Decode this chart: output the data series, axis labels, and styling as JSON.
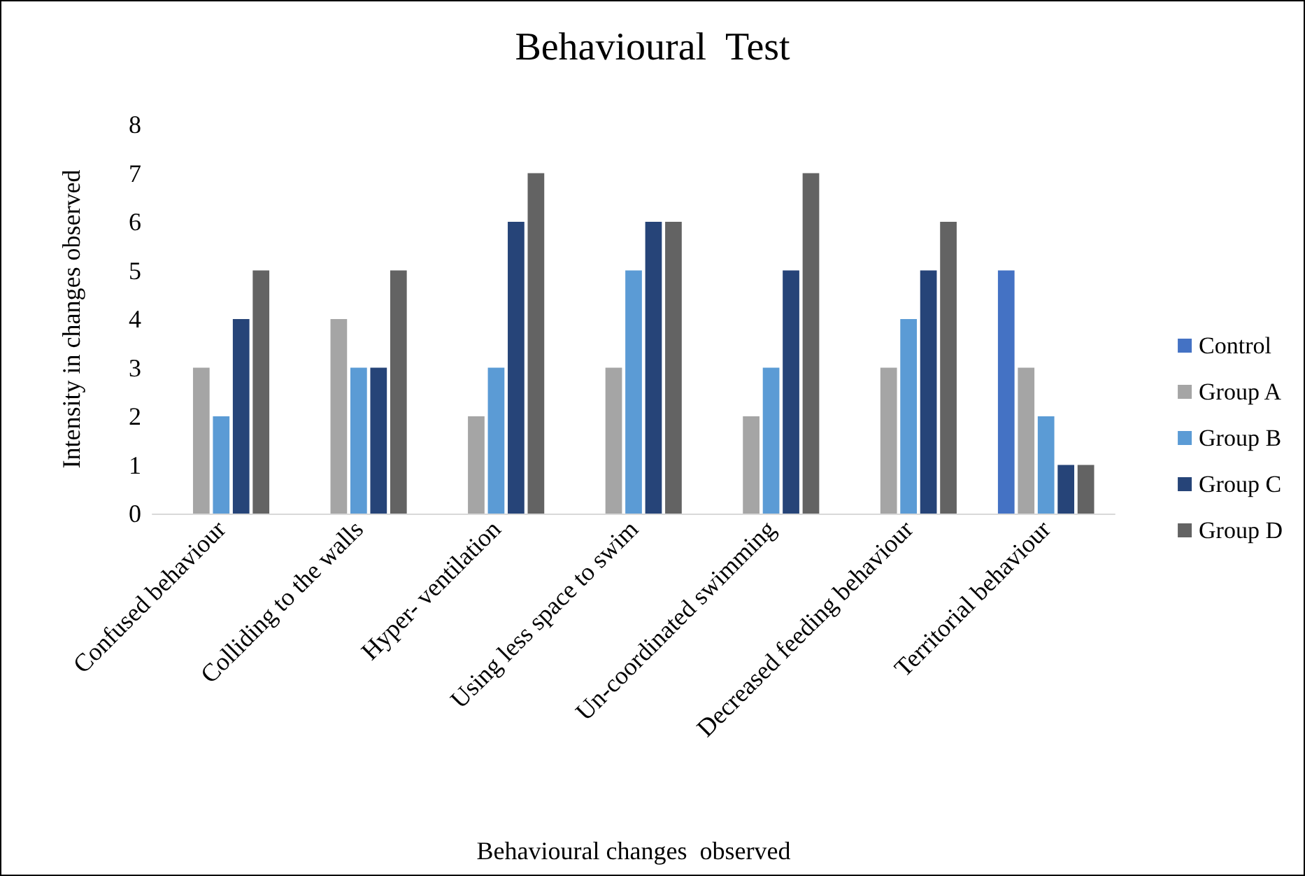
{
  "chart_data": {
    "type": "bar",
    "title": "Behavioural  Test",
    "xlabel": "Behavioural changes  observed",
    "ylabel": "Intensity in changes observed",
    "categories": [
      "Confused behaviour",
      "Colliding to the walls",
      "Hyper- ventilation",
      "Using less space to swim",
      "Un-coordinated swimming",
      "Decreased feeding behaviour",
      "Territorial behaviour"
    ],
    "series": [
      {
        "name": "Control",
        "color": "#4472c4",
        "values": [
          0,
          0,
          0,
          0,
          0,
          0,
          5
        ]
      },
      {
        "name": "Group A",
        "color": "#a5a5a5",
        "values": [
          3,
          4,
          2,
          3,
          2,
          3,
          3
        ]
      },
      {
        "name": "Group B",
        "color": "#5b9bd5",
        "values": [
          2,
          3,
          3,
          5,
          3,
          4,
          2
        ]
      },
      {
        "name": "Group C",
        "color": "#264478",
        "values": [
          4,
          3,
          6,
          6,
          5,
          5,
          1
        ]
      },
      {
        "name": "Group D",
        "color": "#636363",
        "values": [
          5,
          5,
          7,
          6,
          7,
          6,
          1
        ]
      }
    ],
    "ylim": [
      0,
      8
    ],
    "yticks": [
      0,
      1,
      2,
      3,
      4,
      5,
      6,
      7,
      8
    ],
    "grid": false,
    "legend": "right"
  }
}
